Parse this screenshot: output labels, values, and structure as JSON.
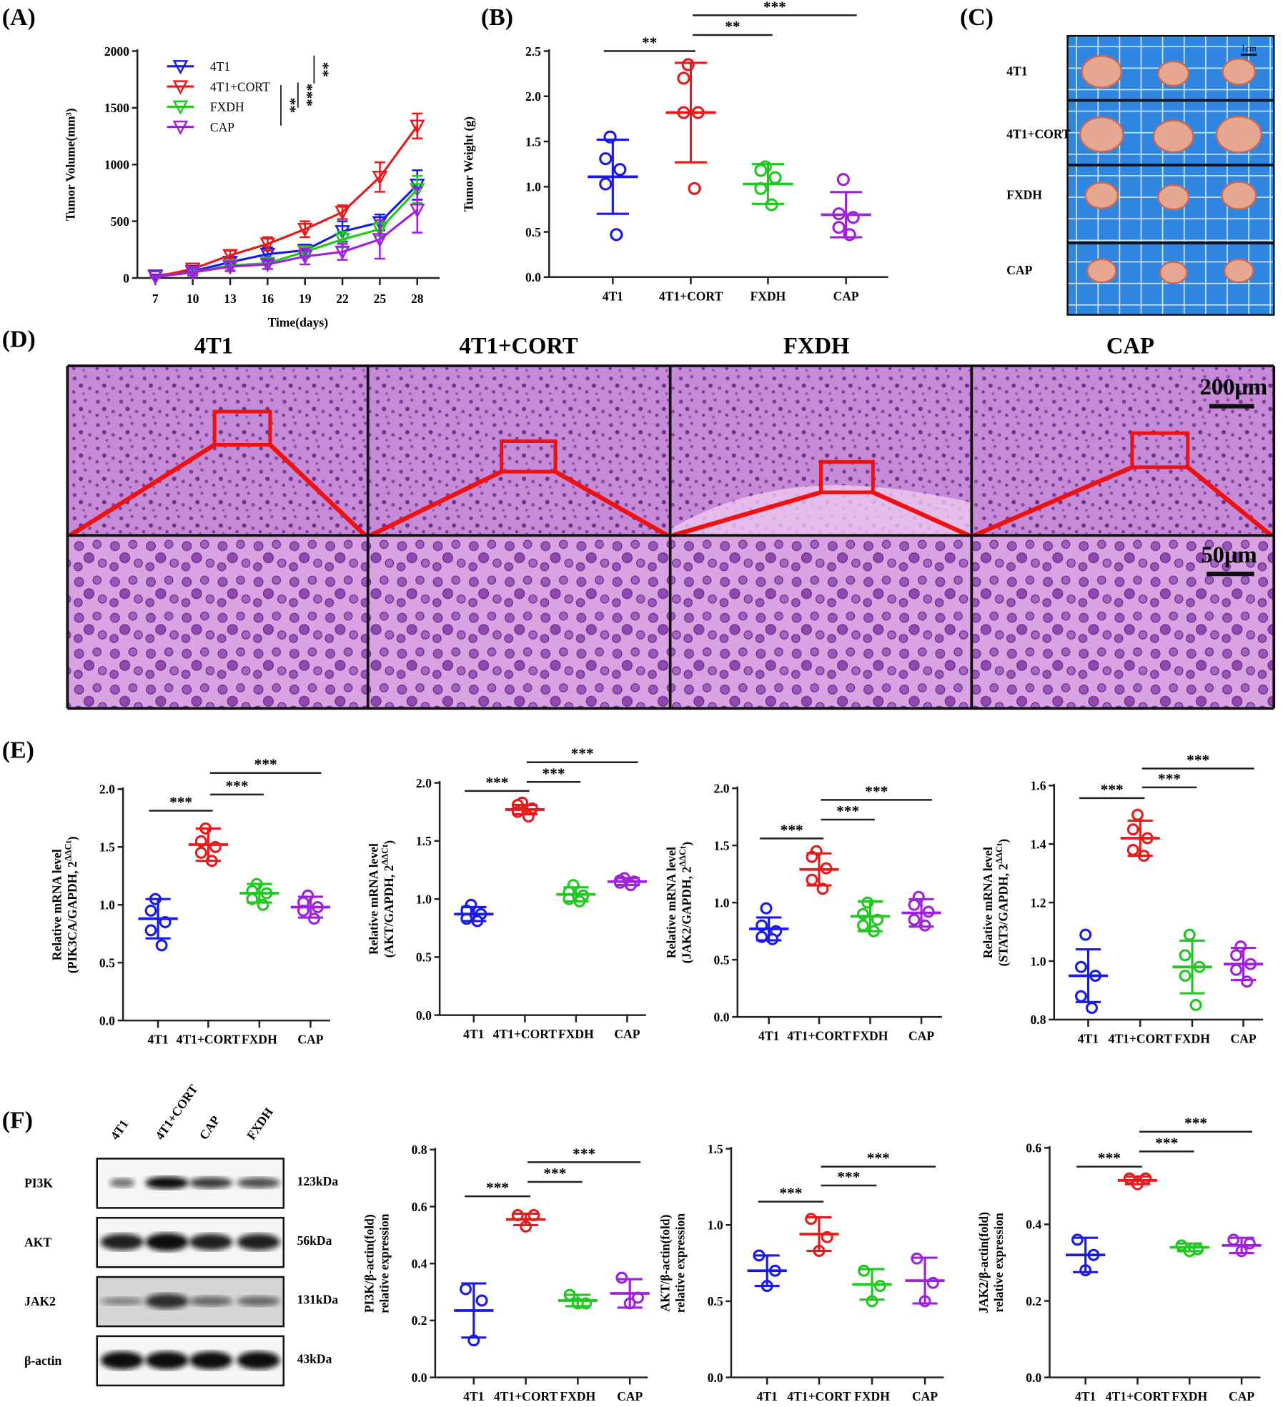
{
  "panel_labels": {
    "A": "(A)",
    "B": "(B)",
    "C": "(C)",
    "D": "(D)",
    "E": "(E)",
    "F": "(F)"
  },
  "groups": [
    "4T1",
    "4T1+CORT",
    "FXDH",
    "CAP"
  ],
  "colors": {
    "4T1": "#1a1ae6",
    "4T1+CORT": "#e61a1a",
    "FXDH": "#1ec81e",
    "CAP": "#a020e0"
  },
  "chart_data": [
    {
      "id": "A",
      "type": "line",
      "xlabel": "Time(days)",
      "ylabel": "Tumor Volume(mm³)",
      "x": [
        7,
        10,
        13,
        16,
        19,
        22,
        25,
        28
      ],
      "xticks": [
        "7",
        "10",
        "13",
        "16",
        "19",
        "22",
        "25",
        "28"
      ],
      "ylim": [
        0,
        2000
      ],
      "yticks": [
        "0",
        "500",
        "1000",
        "1500",
        "2000"
      ],
      "legend": "top-left",
      "series": [
        {
          "name": "4T1",
          "values": [
            20,
            60,
            140,
            210,
            245,
            410,
            490,
            820
          ],
          "err": [
            10,
            20,
            40,
            60,
            50,
            90,
            70,
            130
          ]
        },
        {
          "name": "4T1+CORT",
          "values": [
            10,
            80,
            200,
            300,
            430,
            580,
            890,
            1340
          ],
          "err": [
            10,
            20,
            40,
            60,
            70,
            60,
            130,
            110
          ]
        },
        {
          "name": "FXDH",
          "values": [
            10,
            50,
            110,
            130,
            230,
            340,
            430,
            780
          ],
          "err": [
            10,
            20,
            40,
            50,
            50,
            70,
            60,
            120
          ]
        },
        {
          "name": "CAP",
          "values": [
            10,
            50,
            100,
            120,
            190,
            230,
            340,
            600
          ],
          "err": [
            10,
            30,
            40,
            40,
            70,
            70,
            170,
            200
          ]
        }
      ],
      "significance": [
        {
          "label": "**",
          "pair": [
            "4T1+CORT",
            "4T1"
          ]
        },
        {
          "label": "***",
          "pair": [
            "4T1+CORT",
            "FXDH"
          ]
        },
        {
          "label": "**",
          "pair": [
            "4T1+CORT",
            "CAP"
          ]
        }
      ]
    },
    {
      "id": "B",
      "type": "scatter",
      "ylabel": "Tumor Weight (g)",
      "ylim": [
        0,
        2.5
      ],
      "yticks": [
        "0.0",
        "0.5",
        "1.0",
        "1.5",
        "2.0",
        "2.5"
      ],
      "categories": [
        "4T1",
        "4T1+CORT",
        "FXDH",
        "CAP"
      ],
      "groups": [
        {
          "mean": 1.11,
          "sd": 0.41,
          "points": [
            1.55,
            1.31,
            1.19,
            1.03,
            0.47
          ]
        },
        {
          "mean": 1.82,
          "sd": 0.55,
          "points": [
            2.35,
            2.2,
            1.82,
            1.82,
            0.98
          ]
        },
        {
          "mean": 1.03,
          "sd": 0.22,
          "points": [
            1.22,
            1.18,
            1.1,
            0.98,
            0.8
          ]
        },
        {
          "mean": 0.69,
          "sd": 0.25,
          "points": [
            1.08,
            0.7,
            0.66,
            0.55,
            0.47
          ]
        }
      ],
      "brackets": [
        {
          "from": 0,
          "to": 1,
          "label": "**"
        },
        {
          "from": 1,
          "to": 2,
          "label": "**"
        },
        {
          "from": 1,
          "to": 3,
          "label": "***"
        }
      ]
    },
    {
      "id": "E1",
      "type": "scatter",
      "ylabel": "Relative mRNA level",
      "ylabel2": "(PIK3CA/GAPDH, 2",
      "ylabel_sup": "ΔΔCt",
      "ylabel_end": ")",
      "ylim": [
        0,
        2
      ],
      "yticks": [
        "0.0",
        "0.5",
        "1.0",
        "1.5",
        "2.0"
      ],
      "categories": [
        "4T1",
        "4T1+CORT",
        "FXDH",
        "CAP"
      ],
      "groups": [
        {
          "mean": 0.88,
          "sd": 0.17,
          "points": [
            1.05,
            0.95,
            0.85,
            0.78,
            0.65
          ]
        },
        {
          "mean": 1.52,
          "sd": 0.14,
          "points": [
            1.66,
            1.55,
            1.5,
            1.45,
            1.38
          ]
        },
        {
          "mean": 1.1,
          "sd": 0.08,
          "points": [
            1.18,
            1.12,
            1.1,
            1.05,
            1.0
          ]
        },
        {
          "mean": 0.98,
          "sd": 0.09,
          "points": [
            1.08,
            1.02,
            0.98,
            0.95,
            0.88
          ]
        }
      ],
      "brackets": [
        {
          "from": 0,
          "to": 1,
          "label": "***"
        },
        {
          "from": 1,
          "to": 2,
          "label": "***"
        },
        {
          "from": 1,
          "to": 3,
          "label": "***"
        }
      ]
    },
    {
      "id": "E2",
      "type": "scatter",
      "ylabel": "Relative mRNA level",
      "ylabel2": "(AKT/GAPDH, 2",
      "ylabel_sup": "ΔΔCt",
      "ylabel_end": ")",
      "ylim": [
        0,
        2
      ],
      "yticks": [
        "0.0",
        "0.5",
        "1.0",
        "1.5",
        "2.0"
      ],
      "categories": [
        "4T1",
        "4T1+CORT",
        "FXDH",
        "CAP"
      ],
      "groups": [
        {
          "mean": 0.87,
          "sd": 0.06,
          "points": [
            0.95,
            0.9,
            0.87,
            0.83,
            0.81
          ]
        },
        {
          "mean": 1.77,
          "sd": 0.04,
          "points": [
            1.83,
            1.81,
            1.78,
            1.75,
            1.71
          ]
        },
        {
          "mean": 1.04,
          "sd": 0.06,
          "points": [
            1.12,
            1.06,
            1.03,
            1.0,
            0.98
          ]
        },
        {
          "mean": 1.15,
          "sd": 0.03,
          "points": [
            1.18,
            1.16,
            1.15,
            1.14,
            1.12
          ]
        }
      ],
      "brackets": [
        {
          "from": 0,
          "to": 1,
          "label": "***"
        },
        {
          "from": 1,
          "to": 2,
          "label": "***"
        },
        {
          "from": 1,
          "to": 3,
          "label": "***"
        }
      ]
    },
    {
      "id": "E3",
      "type": "scatter",
      "ylabel": "Relative mRNA level",
      "ylabel2": "(JAK2/GAPDH, 2",
      "ylabel_sup": "ΔΔCt",
      "ylabel_end": ")",
      "ylim": [
        0,
        2
      ],
      "yticks": [
        "0.0",
        "0.5",
        "1.0",
        "1.5",
        "2.0"
      ],
      "categories": [
        "4T1",
        "4T1+CORT",
        "FXDH",
        "CAP"
      ],
      "groups": [
        {
          "mean": 0.77,
          "sd": 0.1,
          "points": [
            0.95,
            0.8,
            0.75,
            0.7,
            0.68
          ]
        },
        {
          "mean": 1.29,
          "sd": 0.14,
          "points": [
            1.45,
            1.4,
            1.3,
            1.2,
            1.12
          ]
        },
        {
          "mean": 0.88,
          "sd": 0.13,
          "points": [
            1.0,
            0.9,
            0.85,
            0.8,
            0.75
          ]
        },
        {
          "mean": 0.91,
          "sd": 0.12,
          "points": [
            1.05,
            0.98,
            0.92,
            0.85,
            0.8
          ]
        }
      ],
      "brackets": [
        {
          "from": 0,
          "to": 1,
          "label": "***"
        },
        {
          "from": 1,
          "to": 2,
          "label": "***"
        },
        {
          "from": 1,
          "to": 3,
          "label": "***"
        }
      ]
    },
    {
      "id": "E4",
      "type": "scatter",
      "ylabel": "Relative mRNA level",
      "ylabel2": "(STAT3/GAPDH, 2",
      "ylabel_sup": "ΔΔCt",
      "ylabel_end": ")",
      "ylim": [
        0.8,
        1.6
      ],
      "yticks": [
        "0.8",
        "1.0",
        "1.2",
        "1.4",
        "1.6"
      ],
      "categories": [
        "4T1",
        "4T1+CORT",
        "FXDH",
        "CAP"
      ],
      "groups": [
        {
          "mean": 0.95,
          "sd": 0.09,
          "points": [
            1.09,
            0.98,
            0.95,
            0.88,
            0.84
          ]
        },
        {
          "mean": 1.42,
          "sd": 0.06,
          "points": [
            1.5,
            1.45,
            1.42,
            1.38,
            1.36
          ]
        },
        {
          "mean": 0.98,
          "sd": 0.09,
          "points": [
            1.09,
            1.02,
            0.98,
            0.95,
            0.85
          ]
        },
        {
          "mean": 0.99,
          "sd": 0.055,
          "points": [
            1.05,
            1.02,
            0.99,
            0.97,
            0.93
          ]
        }
      ],
      "brackets": [
        {
          "from": 0,
          "to": 1,
          "label": "***"
        },
        {
          "from": 1,
          "to": 2,
          "label": "***"
        },
        {
          "from": 1,
          "to": 3,
          "label": "***"
        }
      ]
    },
    {
      "id": "F1",
      "type": "scatter",
      "ylabel": "PI3K/β-actin(fold)",
      "ylabel2": "relative expression",
      "ylim": [
        0,
        0.8
      ],
      "yticks": [
        "0.0",
        "0.2",
        "0.4",
        "0.6",
        "0.8"
      ],
      "categories": [
        "4T1",
        "4T1+CORT",
        "FXDH",
        "CAP"
      ],
      "groups": [
        {
          "mean": 0.235,
          "sd": 0.095,
          "points": [
            0.31,
            0.27,
            0.13
          ]
        },
        {
          "mean": 0.555,
          "sd": 0.02,
          "points": [
            0.57,
            0.57,
            0.53
          ]
        },
        {
          "mean": 0.27,
          "sd": 0.02,
          "points": [
            0.29,
            0.26,
            0.26
          ]
        },
        {
          "mean": 0.295,
          "sd": 0.05,
          "points": [
            0.35,
            0.28,
            0.26
          ]
        }
      ],
      "brackets": [
        {
          "from": 0,
          "to": 1,
          "label": "***"
        },
        {
          "from": 1,
          "to": 2,
          "label": "***"
        },
        {
          "from": 1,
          "to": 3,
          "label": "***"
        }
      ]
    },
    {
      "id": "F2",
      "type": "scatter",
      "ylabel": "AKT/β-actin(fold)",
      "ylabel2": "relative expression",
      "ylim": [
        0,
        1.5
      ],
      "yticks": [
        "0.0",
        "0.5",
        "1.0",
        "1.5"
      ],
      "categories": [
        "4T1",
        "4T1+CORT",
        "FXDH",
        "CAP"
      ],
      "groups": [
        {
          "mean": 0.7,
          "sd": 0.1,
          "points": [
            0.8,
            0.7,
            0.6
          ]
        },
        {
          "mean": 0.94,
          "sd": 0.11,
          "points": [
            1.04,
            0.92,
            0.83
          ]
        },
        {
          "mean": 0.61,
          "sd": 0.1,
          "points": [
            0.7,
            0.6,
            0.5
          ]
        },
        {
          "mean": 0.635,
          "sd": 0.15,
          "points": [
            0.78,
            0.62,
            0.5
          ]
        }
      ],
      "brackets": [
        {
          "from": 0,
          "to": 1,
          "label": "***"
        },
        {
          "from": 1,
          "to": 2,
          "label": "***"
        },
        {
          "from": 1,
          "to": 3,
          "label": "***"
        }
      ]
    },
    {
      "id": "F3",
      "type": "scatter",
      "ylabel": "JAK2/β-actin(fold)",
      "ylabel2": "relative expression",
      "ylim": [
        0,
        0.6
      ],
      "yticks": [
        "0.0",
        "0.2",
        "0.4",
        "0.6"
      ],
      "categories": [
        "4T1",
        "4T1+CORT",
        "FXDH",
        "CAP"
      ],
      "groups": [
        {
          "mean": 0.32,
          "sd": 0.045,
          "points": [
            0.36,
            0.32,
            0.28
          ]
        },
        {
          "mean": 0.515,
          "sd": 0.01,
          "points": [
            0.52,
            0.52,
            0.505
          ]
        },
        {
          "mean": 0.34,
          "sd": 0.01,
          "points": [
            0.345,
            0.335,
            0.33
          ]
        },
        {
          "mean": 0.345,
          "sd": 0.02,
          "points": [
            0.36,
            0.35,
            0.33
          ]
        }
      ],
      "brackets": [
        {
          "from": 0,
          "to": 1,
          "label": "***"
        },
        {
          "from": 1,
          "to": 2,
          "label": "***"
        },
        {
          "from": 1,
          "to": 3,
          "label": "***"
        }
      ]
    }
  ],
  "panel_c": {
    "rows": [
      "4T1",
      "4T1+CORT",
      "FXDH",
      "CAP"
    ],
    "scale_label": "1cm",
    "background": "#2f86e0"
  },
  "panel_d": {
    "titles": [
      "4T1",
      "4T1+CORT",
      "FXDH",
      "CAP"
    ],
    "scale_top": "200μm",
    "scale_bottom": "50μm",
    "stain": "#b060c8",
    "box_color": "#ee1111"
  },
  "panel_f_blot": {
    "lanes": [
      "4T1",
      "4T1+CORT",
      "CAP",
      "FXDH"
    ],
    "rows": [
      {
        "protein": "PI3K",
        "size": "123kDa",
        "band_intensity": [
          0.45,
          1.0,
          0.75,
          0.65
        ]
      },
      {
        "protein": "AKT",
        "size": "56kDa",
        "band_intensity": [
          0.9,
          1.0,
          0.9,
          0.9
        ]
      },
      {
        "protein": "JAK2",
        "size": "131kDa",
        "band_intensity": [
          0.3,
          0.8,
          0.45,
          0.45
        ]
      },
      {
        "protein": "β-actin",
        "size": "43kDa",
        "band_intensity": [
          1.0,
          1.0,
          1.0,
          1.0
        ]
      }
    ]
  }
}
